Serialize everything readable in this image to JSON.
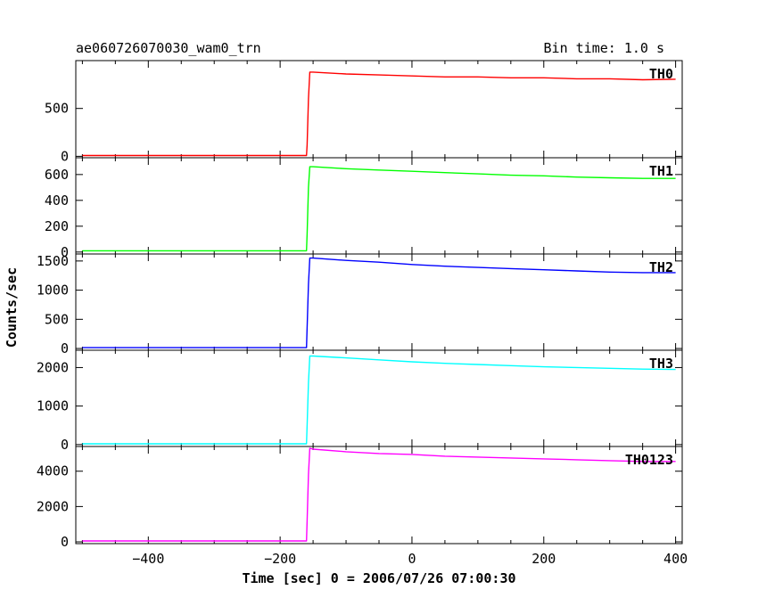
{
  "chart_data": {
    "type": "line",
    "title": "ae060726070030_wam0_trn",
    "bin_time_label": "Bin time: 1.0 s",
    "xlabel": "Time [sec] 0 = 2006/07/26 07:00:30",
    "ylabel": "Counts/sec",
    "xlim": [
      -510,
      410
    ],
    "x_ticks": [
      -400,
      -200,
      0,
      200,
      400
    ],
    "x_tick_labels": [
      "−400",
      "−200",
      "0",
      "200",
      "400"
    ],
    "grid": false,
    "panels": [
      {
        "name": "TH0",
        "color": "#ff0000",
        "ylim": [
          -15,
          1000
        ],
        "y_ticks": [
          0,
          500
        ],
        "y_tick_labels": [
          "0",
          "500"
        ],
        "x": [
          -500,
          -160,
          -159,
          -157,
          -155,
          -150,
          -100,
          -50,
          0,
          50,
          100,
          150,
          200,
          250,
          300,
          350,
          400
        ],
        "y": [
          8,
          8,
          120,
          600,
          880,
          880,
          860,
          850,
          840,
          830,
          830,
          820,
          820,
          810,
          810,
          800,
          805
        ]
      },
      {
        "name": "TH1",
        "color": "#00ff00",
        "ylim": [
          -15,
          730
        ],
        "y_ticks": [
          0,
          200,
          400,
          600
        ],
        "y_tick_labels": [
          "0",
          "200",
          "400",
          "600"
        ],
        "x": [
          -500,
          -160,
          -159,
          -157,
          -155,
          -150,
          -100,
          -50,
          0,
          50,
          100,
          150,
          200,
          250,
          300,
          350,
          400
        ],
        "y": [
          10,
          10,
          140,
          500,
          660,
          660,
          645,
          635,
          625,
          615,
          605,
          595,
          590,
          580,
          575,
          570,
          570
        ]
      },
      {
        "name": "TH2",
        "color": "#0000ff",
        "ylim": [
          -30,
          1620
        ],
        "y_ticks": [
          0,
          500,
          1000,
          1500
        ],
        "y_tick_labels": [
          "0",
          "500",
          "1000",
          "1500"
        ],
        "x": [
          -500,
          -160,
          -159,
          -157,
          -155,
          -150,
          -100,
          -50,
          0,
          50,
          100,
          150,
          200,
          250,
          300,
          350,
          400
        ],
        "y": [
          15,
          15,
          360,
          1100,
          1550,
          1550,
          1510,
          1480,
          1440,
          1410,
          1390,
          1370,
          1350,
          1330,
          1310,
          1300,
          1300
        ]
      },
      {
        "name": "TH3",
        "color": "#00ffff",
        "ylim": [
          -50,
          2450
        ],
        "y_ticks": [
          0,
          1000,
          2000
        ],
        "y_tick_labels": [
          "0",
          "1000",
          "2000"
        ],
        "x": [
          -500,
          -160,
          -159,
          -157,
          -155,
          -150,
          -100,
          -50,
          0,
          50,
          100,
          150,
          200,
          250,
          300,
          350,
          400
        ],
        "y": [
          20,
          20,
          500,
          1600,
          2300,
          2300,
          2250,
          2200,
          2150,
          2110,
          2080,
          2050,
          2020,
          2000,
          1980,
          1960,
          1950
        ]
      },
      {
        "name": "TH0123",
        "color": "#ff00ff",
        "ylim": [
          -100,
          5400
        ],
        "y_ticks": [
          0,
          2000,
          4000
        ],
        "y_tick_labels": [
          "0",
          "2000",
          "4000"
        ],
        "x": [
          -500,
          -160,
          -159,
          -157,
          -155,
          -150,
          -100,
          -50,
          0,
          50,
          100,
          150,
          200,
          250,
          300,
          350,
          400
        ],
        "y": [
          50,
          50,
          1200,
          3800,
          5300,
          5250,
          5100,
          5000,
          4950,
          4850,
          4800,
          4750,
          4700,
          4650,
          4600,
          4550,
          4550
        ]
      }
    ]
  }
}
